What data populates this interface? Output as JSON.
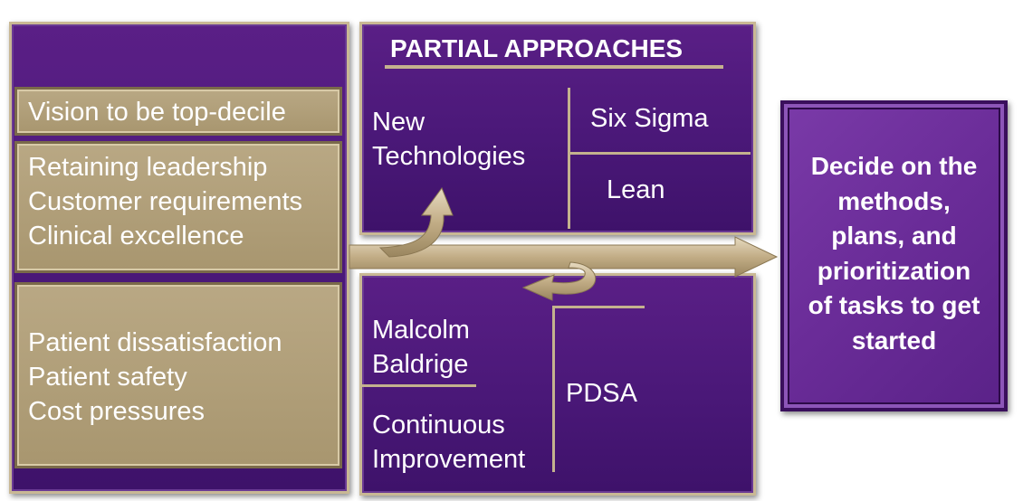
{
  "left_panel": {
    "vision": "Vision to be top-decile",
    "drivers": [
      "Retaining leadership",
      "Customer requirements",
      "Clinical excellence"
    ],
    "pressures": [
      "Patient dissatisfaction",
      "Patient safety",
      "Cost pressures"
    ]
  },
  "partial_approaches": {
    "title": "PARTIAL APPROACHES",
    "new_technologies": [
      "New",
      "Technologies"
    ],
    "six_sigma": "Six Sigma",
    "lean": "Lean"
  },
  "lower_box": {
    "malcolm_baldrige": [
      "Malcolm",
      "Baldrige"
    ],
    "continuous_improvement": [
      "Continuous",
      "Improvement"
    ],
    "pdsa": "PDSA"
  },
  "decide": {
    "text": "Decide  on the\nmethods,\nplans, and\nprioritization\nof tasks to get\nstarted"
  },
  "colors": {
    "purple": "#4a1878",
    "tan": "#a8966f",
    "decide_purple": "#6a2c98",
    "text": "#ffffff"
  }
}
